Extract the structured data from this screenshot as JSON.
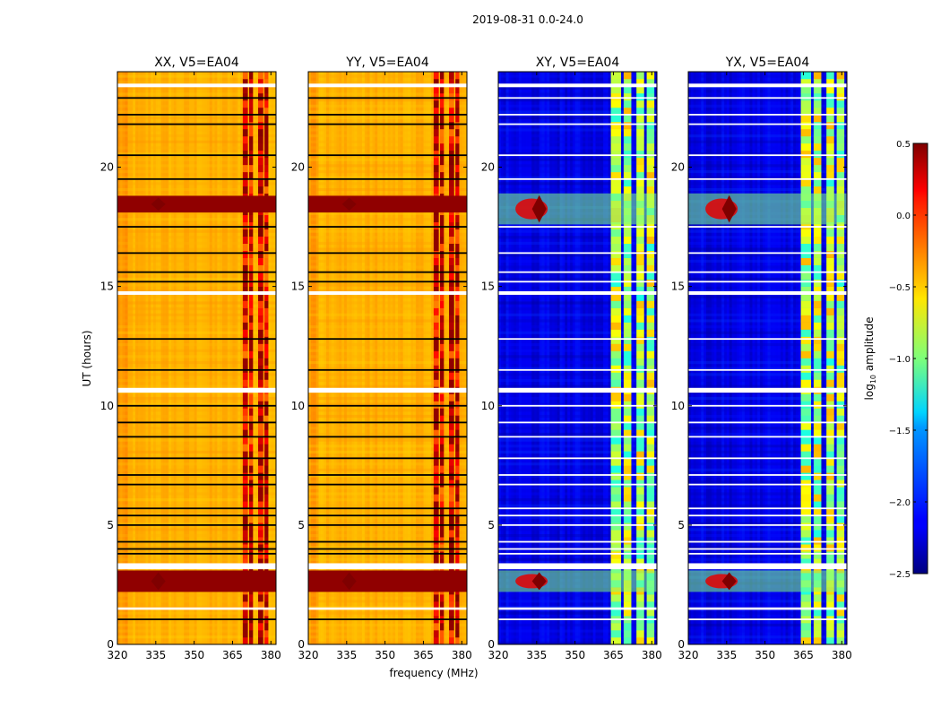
{
  "figure": {
    "suptitle": "2019-08-31 0.0-24.0",
    "xlabel": "frequency (MHz)",
    "ylabel": "UT (hours)"
  },
  "colors": {
    "background": "#ffffff",
    "gap_white": "#ffffff",
    "flag_black": "#000000",
    "axis": "#000000"
  },
  "chart_data": [
    {
      "type": "heatmap",
      "title": "XX, V5=EA04",
      "polarization": "XX",
      "xlabel": "frequency (MHz)",
      "ylabel": "UT (hours)",
      "xlim": [
        320,
        382
      ],
      "ylim": [
        0,
        24
      ],
      "xticks": [
        320,
        335,
        350,
        365,
        380
      ],
      "yticks": [
        0,
        5,
        10,
        15,
        20
      ],
      "base_log10_amplitude": -0.4,
      "strong_rfi_bands_mhz": [
        [
          369,
          371
        ],
        [
          371.5,
          373
        ],
        [
          375,
          377
        ],
        [
          377.5,
          379
        ]
      ],
      "saturated_time_ranges_hours": [
        [
          2.2,
          3.1
        ],
        [
          18.1,
          18.8
        ]
      ],
      "white_gap_time_ranges_hours": [
        [
          1.45,
          1.55
        ],
        [
          3.15,
          3.4
        ],
        [
          10.55,
          10.75
        ],
        [
          14.65,
          14.8
        ],
        [
          23.35,
          23.5
        ]
      ],
      "black_flag_times_hours": [
        1.05,
        3.8,
        4.0,
        4.3,
        5.0,
        5.4,
        5.7,
        6.7,
        7.1,
        7.8,
        8.7,
        9.3,
        10.0,
        11.5,
        12.8,
        15.2,
        15.6,
        16.4,
        17.5,
        19.5,
        20.5,
        21.8,
        22.2,
        22.9
      ]
    },
    {
      "type": "heatmap",
      "title": "YY, V5=EA04",
      "polarization": "YY",
      "xlabel": "frequency (MHz)",
      "ylabel": "UT (hours)",
      "xlim": [
        320,
        382
      ],
      "ylim": [
        0,
        24
      ],
      "xticks": [
        320,
        335,
        350,
        365,
        380
      ],
      "yticks": [
        0,
        5,
        10,
        15,
        20
      ],
      "base_log10_amplitude": -0.4,
      "strong_rfi_bands_mhz": [
        [
          369,
          371
        ],
        [
          371.5,
          373
        ],
        [
          375,
          377
        ],
        [
          377.5,
          379
        ]
      ],
      "saturated_time_ranges_hours": [
        [
          2.2,
          3.1
        ],
        [
          18.1,
          18.8
        ]
      ],
      "white_gap_time_ranges_hours": [
        [
          1.45,
          1.55
        ],
        [
          3.15,
          3.4
        ],
        [
          10.55,
          10.75
        ],
        [
          14.65,
          14.8
        ],
        [
          23.35,
          23.5
        ]
      ],
      "black_flag_times_hours": [
        1.05,
        3.8,
        4.0,
        4.3,
        5.0,
        5.4,
        5.7,
        6.7,
        7.1,
        7.8,
        8.7,
        9.3,
        10.0,
        11.5,
        12.8,
        15.2,
        15.6,
        16.4,
        17.5,
        19.5,
        20.5,
        21.8,
        22.2,
        22.9
      ]
    },
    {
      "type": "heatmap",
      "title": "XY, V5=EA04",
      "polarization": "XY",
      "xlabel": "frequency (MHz)",
      "ylabel": "UT (hours)",
      "xlim": [
        320,
        382
      ],
      "ylim": [
        0,
        24
      ],
      "xticks": [
        320,
        335,
        350,
        365,
        380
      ],
      "yticks": [
        0,
        5,
        10,
        15,
        20
      ],
      "base_log10_amplitude": -2.2,
      "strong_rfi_bands_mhz": [
        [
          364,
          368
        ],
        [
          369,
          372
        ],
        [
          374,
          377
        ],
        [
          378,
          381
        ]
      ],
      "saturated_time_ranges_hours": [
        [
          2.2,
          3.1
        ],
        [
          17.6,
          18.9
        ]
      ],
      "white_gap_time_ranges_hours": [
        [
          1.45,
          1.55
        ],
        [
          3.15,
          3.4
        ],
        [
          10.55,
          10.75
        ],
        [
          14.65,
          14.8
        ],
        [
          23.35,
          23.5
        ]
      ],
      "white_flag_times_hours": [
        1.05,
        3.8,
        4.0,
        4.3,
        5.0,
        5.4,
        5.7,
        6.7,
        7.1,
        7.8,
        8.7,
        9.3,
        10.0,
        11.5,
        12.8,
        15.2,
        15.6,
        16.4,
        17.5,
        19.5,
        20.5,
        21.8,
        22.2,
        22.9
      ]
    },
    {
      "type": "heatmap",
      "title": "YX, V5=EA04",
      "polarization": "YX",
      "xlabel": "frequency (MHz)",
      "ylabel": "UT (hours)",
      "xlim": [
        320,
        382
      ],
      "ylim": [
        0,
        24
      ],
      "xticks": [
        320,
        335,
        350,
        365,
        380
      ],
      "yticks": [
        0,
        5,
        10,
        15,
        20
      ],
      "base_log10_amplitude": -2.2,
      "strong_rfi_bands_mhz": [
        [
          364,
          368
        ],
        [
          369,
          372
        ],
        [
          374,
          377
        ],
        [
          378,
          381
        ]
      ],
      "saturated_time_ranges_hours": [
        [
          2.2,
          3.1
        ],
        [
          17.6,
          18.9
        ]
      ],
      "white_gap_time_ranges_hours": [
        [
          1.45,
          1.55
        ],
        [
          3.15,
          3.4
        ],
        [
          10.55,
          10.75
        ],
        [
          14.65,
          14.8
        ],
        [
          23.35,
          23.5
        ]
      ],
      "white_flag_times_hours": [
        1.05,
        3.8,
        4.0,
        4.3,
        5.0,
        5.4,
        5.7,
        6.7,
        7.1,
        7.8,
        8.7,
        9.3,
        10.0,
        11.5,
        12.8,
        15.2,
        15.6,
        16.4,
        17.5,
        19.5,
        20.5,
        21.8,
        22.2,
        22.9
      ]
    }
  ],
  "colorbar": {
    "label_prefix": "log",
    "label_subscript": "10",
    "label_suffix": " amplitude",
    "range": [
      -2.5,
      0.5
    ],
    "ticks": [
      "0.5",
      "0.0",
      "−0.5",
      "−1.0",
      "−1.5",
      "−2.0",
      "−2.5"
    ],
    "tick_values": [
      0.5,
      0.0,
      -0.5,
      -1.0,
      -1.5,
      -2.0,
      -2.5
    ],
    "colormap": "jet"
  }
}
